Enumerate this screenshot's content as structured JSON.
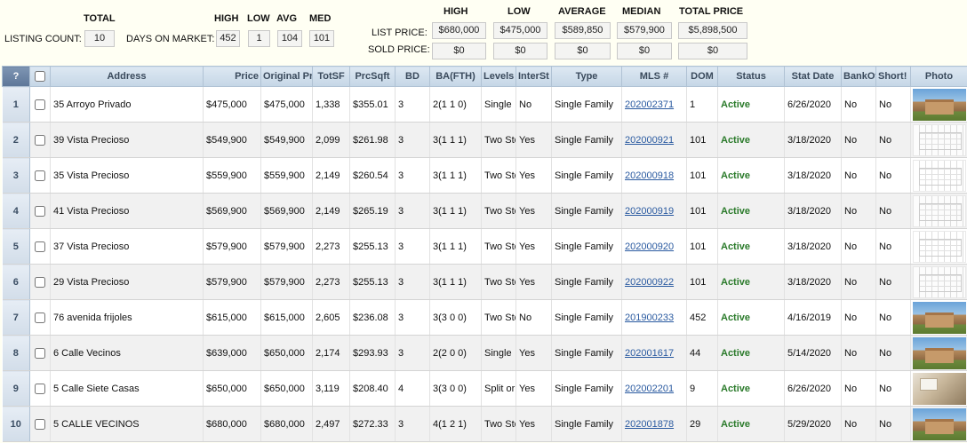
{
  "summary": {
    "total_header": "TOTAL",
    "listing_count_label": "LISTING COUNT:",
    "listing_count": "10",
    "days_on_market_label": "DAYS ON MARKET:",
    "dom_headers": {
      "high": "HIGH",
      "low": "LOW",
      "avg": "AVG",
      "med": "MED"
    },
    "dom_values": {
      "high": "452",
      "low": "1",
      "avg": "104",
      "med": "101"
    }
  },
  "price_summary": {
    "headers": {
      "high": "HIGH",
      "low": "LOW",
      "average": "AVERAGE",
      "median": "MEDIAN",
      "total": "TOTAL PRICE"
    },
    "list_label": "LIST PRICE:",
    "sold_label": "SOLD PRICE:",
    "list": {
      "high": "$680,000",
      "low": "$475,000",
      "average": "$589,850",
      "median": "$579,900",
      "total": "$5,898,500"
    },
    "sold": {
      "high": "$0",
      "low": "$0",
      "average": "$0",
      "median": "$0",
      "total": "$0"
    }
  },
  "columns": {
    "q": "?",
    "address": "Address",
    "price": "Price",
    "original": "Original Pr",
    "totsf": "TotSF",
    "prcsqft": "PrcSqft",
    "bd": "BD",
    "ba": "BA(FTH)",
    "levels": "Levels",
    "inter": "InterSt",
    "type": "Type",
    "mls": "MLS #",
    "dom": "DOM",
    "status": "Status",
    "statdate": "Stat Date",
    "bank": "BankOw",
    "short": "Short!",
    "photo": "Photo"
  },
  "rows": [
    {
      "n": "1",
      "address": "35 Arroyo Privado",
      "price": "$475,000",
      "original": "$475,000",
      "totsf": "1,338",
      "prcsqft": "$355.01",
      "bd": "3",
      "ba": "2(1 1 0)",
      "levels": "Single",
      "inter": "No",
      "type": "Single Family",
      "mls": "202002371",
      "dom": "1",
      "status": "Active",
      "statdate": "6/26/2020",
      "bank": "No",
      "short": "No",
      "photo": "house-photo"
    },
    {
      "n": "2",
      "address": "39 Vista Precioso",
      "price": "$549,900",
      "original": "$549,900",
      "totsf": "2,099",
      "prcsqft": "$261.98",
      "bd": "3",
      "ba": "3(1 1 1)",
      "levels": "Two Story",
      "inter": "Yes",
      "type": "Single Family",
      "mls": "202000921",
      "dom": "101",
      "status": "Active",
      "statdate": "3/18/2020",
      "bank": "No",
      "short": "No",
      "photo": "floorplan-photo"
    },
    {
      "n": "3",
      "address": "35 Vista Precioso",
      "price": "$559,900",
      "original": "$559,900",
      "totsf": "2,149",
      "prcsqft": "$260.54",
      "bd": "3",
      "ba": "3(1 1 1)",
      "levels": "Two Story",
      "inter": "Yes",
      "type": "Single Family",
      "mls": "202000918",
      "dom": "101",
      "status": "Active",
      "statdate": "3/18/2020",
      "bank": "No",
      "short": "No",
      "photo": "floorplan-photo"
    },
    {
      "n": "4",
      "address": "41 Vista Precioso",
      "price": "$569,900",
      "original": "$569,900",
      "totsf": "2,149",
      "prcsqft": "$265.19",
      "bd": "3",
      "ba": "3(1 1 1)",
      "levels": "Two Story",
      "inter": "Yes",
      "type": "Single Family",
      "mls": "202000919",
      "dom": "101",
      "status": "Active",
      "statdate": "3/18/2020",
      "bank": "No",
      "short": "No",
      "photo": "floorplan-photo"
    },
    {
      "n": "5",
      "address": "37 Vista Precioso",
      "price": "$579,900",
      "original": "$579,900",
      "totsf": "2,273",
      "prcsqft": "$255.13",
      "bd": "3",
      "ba": "3(1 1 1)",
      "levels": "Two Story",
      "inter": "Yes",
      "type": "Single Family",
      "mls": "202000920",
      "dom": "101",
      "status": "Active",
      "statdate": "3/18/2020",
      "bank": "No",
      "short": "No",
      "photo": "floorplan-photo"
    },
    {
      "n": "6",
      "address": "29 Vista Precioso",
      "price": "$579,900",
      "original": "$579,900",
      "totsf": "2,273",
      "prcsqft": "$255.13",
      "bd": "3",
      "ba": "3(1 1 1)",
      "levels": "Two Story",
      "inter": "Yes",
      "type": "Single Family",
      "mls": "202000922",
      "dom": "101",
      "status": "Active",
      "statdate": "3/18/2020",
      "bank": "No",
      "short": "No",
      "photo": "floorplan-photo"
    },
    {
      "n": "7",
      "address": "76 avenida frijoles",
      "price": "$615,000",
      "original": "$615,000",
      "totsf": "2,605",
      "prcsqft": "$236.08",
      "bd": "3",
      "ba": "3(3 0 0)",
      "levels": "Two Story",
      "inter": "No",
      "type": "Single Family",
      "mls": "201900233",
      "dom": "452",
      "status": "Active",
      "statdate": "4/16/2019",
      "bank": "No",
      "short": "No",
      "photo": "house-photo"
    },
    {
      "n": "8",
      "address": "6 Calle Vecinos",
      "price": "$639,000",
      "original": "$650,000",
      "totsf": "2,174",
      "prcsqft": "$293.93",
      "bd": "3",
      "ba": "2(2 0 0)",
      "levels": "Single",
      "inter": "Yes",
      "type": "Single Family",
      "mls": "202001617",
      "dom": "44",
      "status": "Active",
      "statdate": "5/14/2020",
      "bank": "No",
      "short": "No",
      "photo": "house-photo"
    },
    {
      "n": "9",
      "address": "5 Calle Siete Casas",
      "price": "$650,000",
      "original": "$650,000",
      "totsf": "3,119",
      "prcsqft": "$208.40",
      "bd": "4",
      "ba": "3(3 0 0)",
      "levels": "Split or Tri",
      "inter": "Yes",
      "type": "Single Family",
      "mls": "202002201",
      "dom": "9",
      "status": "Active",
      "statdate": "6/26/2020",
      "bank": "No",
      "short": "No",
      "photo": "interior-photo"
    },
    {
      "n": "10",
      "address": "5 CALLE VECINOS",
      "price": "$680,000",
      "original": "$680,000",
      "totsf": "2,497",
      "prcsqft": "$272.33",
      "bd": "3",
      "ba": "4(1 2 1)",
      "levels": "Two Story",
      "inter": "Yes",
      "type": "Single Family",
      "mls": "202001878",
      "dom": "29",
      "status": "Active",
      "statdate": "5/29/2020",
      "bank": "No",
      "short": "No",
      "photo": "house-photo"
    }
  ]
}
